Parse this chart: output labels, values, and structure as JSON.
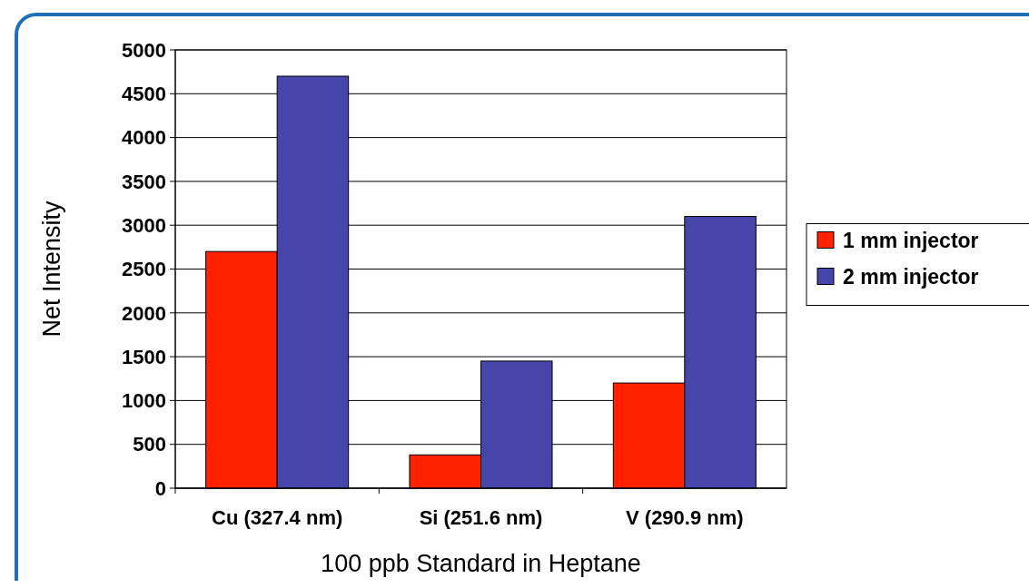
{
  "chart_data": {
    "type": "bar",
    "xlabel": "100 ppb Standard in Heptane",
    "ylabel": "Net Intensity",
    "categories": [
      "Cu (327.4 nm)",
      "Si (251.6 nm)",
      "V (290.9 nm)"
    ],
    "series": [
      {
        "name": "1 mm injector",
        "color": "#ff2200",
        "values": [
          2700,
          380,
          1200
        ]
      },
      {
        "name": "2 mm injector",
        "color": "#4646aa",
        "values": [
          4700,
          1450,
          3100
        ]
      }
    ],
    "ylim": [
      0,
      5000
    ],
    "yticks": [
      0,
      500,
      1000,
      1500,
      2000,
      2500,
      3000,
      3500,
      4000,
      4500,
      5000
    ],
    "grid": "y",
    "legend": "right"
  }
}
